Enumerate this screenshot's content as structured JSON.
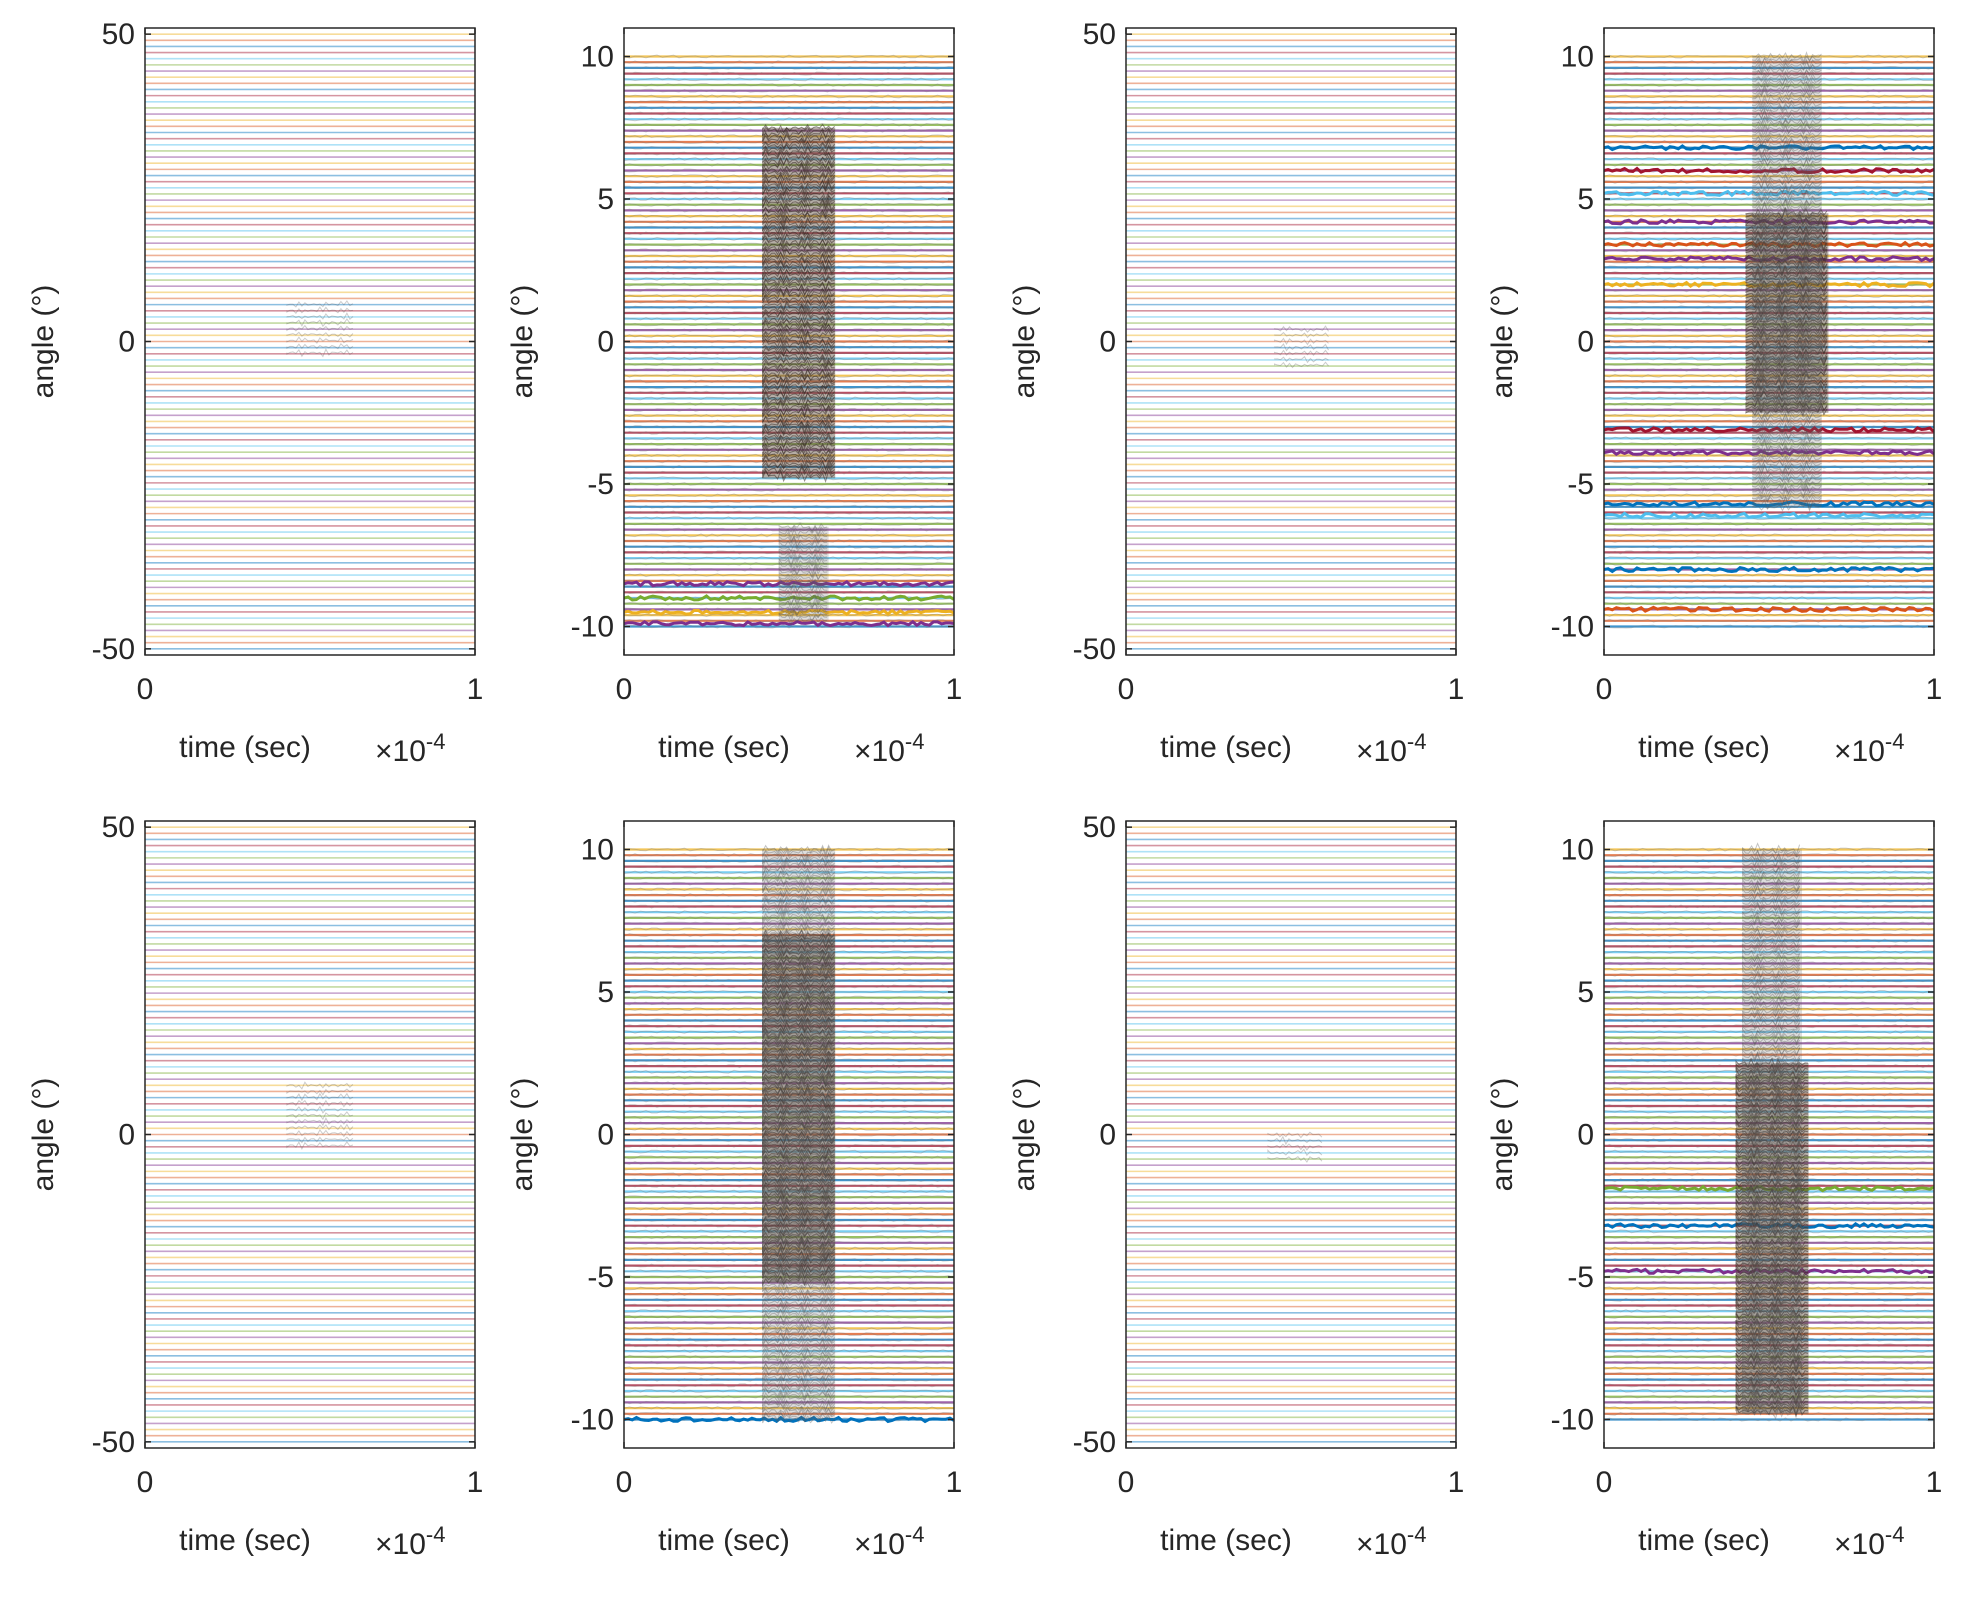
{
  "figure": {
    "layout": "2 rows x 4 columns of line plots",
    "colors": [
      "#0072bd",
      "#d95319",
      "#edb120",
      "#7e2f8e",
      "#77ac30",
      "#4dbeee",
      "#a2142f"
    ]
  },
  "chart_data": [
    {
      "type": "line",
      "panel": "row1-col1",
      "xlabel": "time (sec)",
      "ylabel": "angle (°)",
      "xlim": [
        0,
        1
      ],
      "x_exponent": "×10-4",
      "xticks": [
        0,
        1
      ],
      "ylim": [
        -51,
        51
      ],
      "yticks": [
        -50,
        0,
        50
      ],
      "trace_range": [
        -50,
        50
      ],
      "trace_count": 101,
      "style": "faint",
      "bursts": [
        {
          "t0": 0.43,
          "t1": 0.63,
          "y0": -2,
          "y1": 6,
          "strength": "weak"
        }
      ],
      "highlights": []
    },
    {
      "type": "line",
      "panel": "row1-col2",
      "xlabel": "time (sec)",
      "ylabel": "angle (°)",
      "xlim": [
        0,
        1
      ],
      "x_exponent": "×10-4",
      "xticks": [
        0,
        1
      ],
      "ylim": [
        -11,
        11
      ],
      "yticks": [
        -10,
        -5,
        0,
        5,
        10
      ],
      "trace_range": [
        -10,
        10
      ],
      "trace_count": 101,
      "style": "dense",
      "bursts": [
        {
          "t0": 0.42,
          "t1": 0.64,
          "y0": -4.8,
          "y1": 7.5,
          "strength": "strong"
        },
        {
          "t0": 0.47,
          "t1": 0.62,
          "y0": -9.8,
          "y1": -6.5,
          "strength": "weak"
        }
      ],
      "highlights": [
        {
          "y": -8.5,
          "color": "#7e2f8e"
        },
        {
          "y": -9.0,
          "color": "#77ac30"
        },
        {
          "y": -9.5,
          "color": "#edb120"
        },
        {
          "y": -9.9,
          "color": "#7e2f8e"
        }
      ]
    },
    {
      "type": "line",
      "panel": "row1-col3",
      "xlabel": "time (sec)",
      "ylabel": "angle (°)",
      "xlim": [
        0,
        1
      ],
      "x_exponent": "×10-4",
      "xticks": [
        0,
        1
      ],
      "ylim": [
        -51,
        51
      ],
      "yticks": [
        -50,
        0,
        50
      ],
      "trace_range": [
        -50,
        50
      ],
      "trace_count": 101,
      "style": "faint",
      "bursts": [
        {
          "t0": 0.45,
          "t1": 0.62,
          "y0": -4,
          "y1": 2,
          "strength": "weak"
        }
      ],
      "highlights": []
    },
    {
      "type": "line",
      "panel": "row1-col4",
      "xlabel": "time (sec)",
      "ylabel": "angle (°)",
      "xlim": [
        0,
        1
      ],
      "x_exponent": "×10-4",
      "xticks": [
        0,
        1
      ],
      "ylim": [
        -11,
        11
      ],
      "yticks": [
        -10,
        -5,
        0,
        5,
        10
      ],
      "trace_range": [
        -10,
        10
      ],
      "trace_count": 101,
      "style": "dense",
      "bursts": [
        {
          "t0": 0.43,
          "t1": 0.68,
          "y0": -2.5,
          "y1": 4.5,
          "strength": "strong"
        },
        {
          "t0": 0.45,
          "t1": 0.66,
          "y0": -5.8,
          "y1": 10,
          "strength": "weak"
        }
      ],
      "highlights": [
        {
          "y": 6.8,
          "color": "#0072bd"
        },
        {
          "y": 6.0,
          "color": "#a2142f"
        },
        {
          "y": 5.2,
          "color": "#4dbeee"
        },
        {
          "y": 4.2,
          "color": "#7e2f8e"
        },
        {
          "y": 3.4,
          "color": "#d95319"
        },
        {
          "y": 2.9,
          "color": "#7e2f8e"
        },
        {
          "y": 2.0,
          "color": "#edb120"
        },
        {
          "y": -3.1,
          "color": "#a2142f"
        },
        {
          "y": -3.9,
          "color": "#7e2f8e"
        },
        {
          "y": -5.7,
          "color": "#0072bd"
        },
        {
          "y": -6.1,
          "color": "#4dbeee"
        },
        {
          "y": -8.0,
          "color": "#0072bd"
        },
        {
          "y": -9.4,
          "color": "#d95319"
        }
      ]
    },
    {
      "type": "line",
      "panel": "row2-col1",
      "xlabel": "time (sec)",
      "ylabel": "angle (°)",
      "xlim": [
        0,
        1
      ],
      "x_exponent": "×10-4",
      "xticks": [
        0,
        1
      ],
      "ylim": [
        -51,
        51
      ],
      "yticks": [
        -50,
        0,
        50
      ],
      "trace_range": [
        -50,
        50
      ],
      "trace_count": 101,
      "style": "faint",
      "bursts": [
        {
          "t0": 0.43,
          "t1": 0.63,
          "y0": -2,
          "y1": 8,
          "strength": "weak"
        }
      ],
      "highlights": []
    },
    {
      "type": "line",
      "panel": "row2-col2",
      "xlabel": "time (sec)",
      "ylabel": "angle (°)",
      "xlim": [
        0,
        1
      ],
      "x_exponent": "×10-4",
      "xticks": [
        0,
        1
      ],
      "ylim": [
        -11,
        11
      ],
      "yticks": [
        -10,
        -5,
        0,
        5,
        10
      ],
      "trace_range": [
        -10,
        10
      ],
      "trace_count": 101,
      "style": "dense",
      "bursts": [
        {
          "t0": 0.42,
          "t1": 0.64,
          "y0": -5.2,
          "y1": 7,
          "strength": "strong"
        },
        {
          "t0": 0.42,
          "t1": 0.64,
          "y0": -10,
          "y1": 10,
          "strength": "weak"
        }
      ],
      "highlights": [
        {
          "y": -10.0,
          "color": "#0072bd"
        }
      ]
    },
    {
      "type": "line",
      "panel": "row2-col3",
      "xlabel": "time (sec)",
      "ylabel": "angle (°)",
      "xlim": [
        0,
        1
      ],
      "x_exponent": "×10-4",
      "xticks": [
        0,
        1
      ],
      "ylim": [
        -51,
        51
      ],
      "yticks": [
        -50,
        0,
        50
      ],
      "trace_range": [
        -50,
        50
      ],
      "trace_count": 101,
      "style": "faint",
      "bursts": [
        {
          "t0": 0.43,
          "t1": 0.6,
          "y0": -4,
          "y1": 0,
          "strength": "weak"
        }
      ],
      "highlights": []
    },
    {
      "type": "line",
      "panel": "row2-col4",
      "xlabel": "time (sec)",
      "ylabel": "angle (°)",
      "xlim": [
        0,
        1
      ],
      "x_exponent": "×10-4",
      "xticks": [
        0,
        1
      ],
      "ylim": [
        -11,
        11
      ],
      "yticks": [
        -10,
        -5,
        0,
        5,
        10
      ],
      "trace_range": [
        -10,
        10
      ],
      "trace_count": 101,
      "style": "dense",
      "bursts": [
        {
          "t0": 0.4,
          "t1": 0.62,
          "y0": -9.8,
          "y1": 2.5,
          "strength": "strong"
        },
        {
          "t0": 0.42,
          "t1": 0.6,
          "y0": -9.8,
          "y1": 10,
          "strength": "weak"
        }
      ],
      "highlights": [
        {
          "y": -1.9,
          "color": "#77ac30"
        },
        {
          "y": -3.2,
          "color": "#0072bd"
        },
        {
          "y": -4.8,
          "color": "#7e2f8e"
        }
      ]
    }
  ]
}
